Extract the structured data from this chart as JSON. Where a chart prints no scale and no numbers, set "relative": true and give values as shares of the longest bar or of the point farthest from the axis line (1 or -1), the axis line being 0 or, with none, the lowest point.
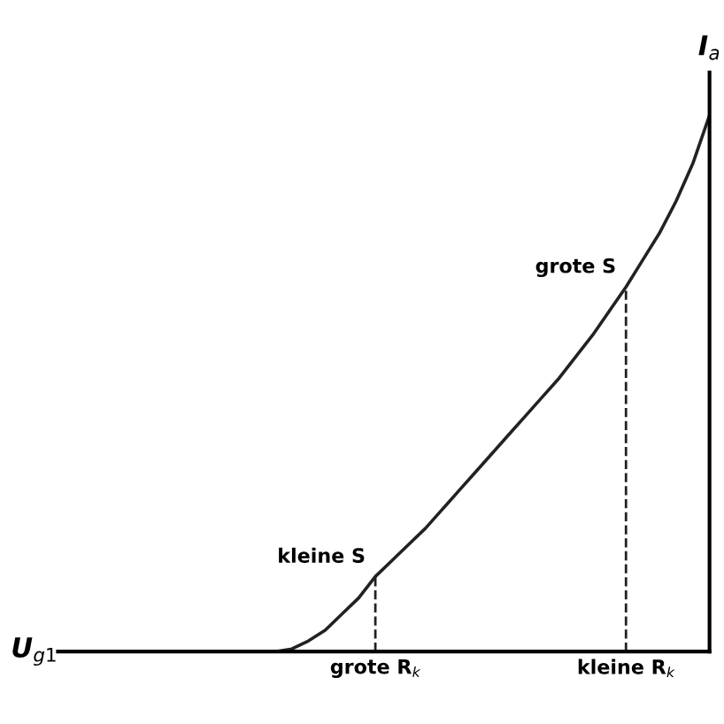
{
  "chart_data": {
    "type": "line",
    "relative": true,
    "categories": [
      null,
      null,
      null,
      null,
      null,
      null,
      null,
      null,
      null,
      null,
      null,
      null,
      null,
      null,
      null,
      null,
      null,
      null,
      null,
      "grote R$_{k}$",
      null,
      null,
      null,
      null,
      null,
      null,
      null,
      null,
      null,
      null,
      null,
      null,
      null,
      null,
      "kleine R$_{k}$",
      null,
      null,
      null,
      null,
      null
    ],
    "series": [
      {
        "color": "#222222",
        "values": [
          null,
          null,
          null,
          null,
          null,
          null,
          null,
          null,
          null,
          null,
          null,
          null,
          null,
          0,
          0.005,
          0.02,
          0.04,
          0.07,
          0.1,
          0.14,
          0.17,
          0.2,
          0.23,
          0.265,
          0.3,
          0.335,
          0.37,
          0.405,
          0.44,
          0.475,
          0.51,
          0.55,
          0.59,
          0.635,
          0.68,
          0.73,
          0.78,
          0.84,
          0.91,
          1.0
        ]
      }
    ],
    "xlabel": "U$_{g1}$",
    "ylabel": "I$_{a}$",
    "ref_lines": [
      {
        "axis": "x",
        "value": "grote R$_{k}$",
        "line_style": "dashed",
        "color": "#222222"
      },
      {
        "axis": "x",
        "value": "kleine R$_{k}$",
        "line_style": "dashed",
        "color": "#222222"
      }
    ],
    "annotations": [
      {
        "text": "kleine S",
        "x": "grote R$_{k}$",
        "y": 0.14
      },
      {
        "text": "grote S",
        "x": "kleine R$_{k}$",
        "y": 0.68
      }
    ],
    "grid": false,
    "legend": false,
    "marker": "none",
    "line_style": "solid"
  }
}
